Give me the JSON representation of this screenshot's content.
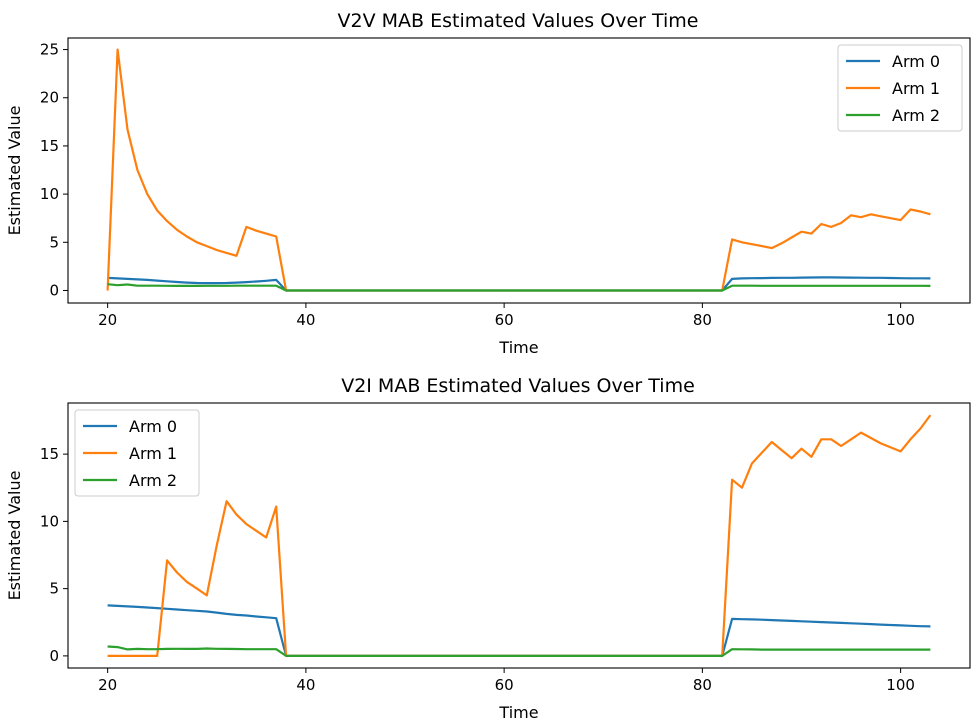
{
  "chart_data": [
    {
      "type": "line",
      "title": "V2V MAB Estimated Values Over Time",
      "xlabel": "Time",
      "ylabel": "Estimated Value",
      "xlim": [
        16,
        107
      ],
      "ylim": [
        -1.3,
        26.2
      ],
      "xticks": [
        20,
        40,
        60,
        80,
        100
      ],
      "yticks": [
        0,
        5,
        10,
        15,
        20,
        25
      ],
      "grid": false,
      "legend_position": "top-right",
      "series": [
        {
          "name": "Arm 0",
          "color": "#1f77b4",
          "x": [
            20,
            21,
            22,
            23,
            24,
            25,
            26,
            27,
            28,
            29,
            30,
            31,
            32,
            33,
            34,
            35,
            36,
            37,
            38,
            82,
            83,
            84,
            85,
            86,
            87,
            88,
            89,
            90,
            91,
            92,
            93,
            94,
            95,
            96,
            97,
            98,
            99,
            100,
            101,
            102,
            103
          ],
          "y": [
            1.3,
            1.25,
            1.2,
            1.15,
            1.1,
            1.02,
            0.95,
            0.88,
            0.82,
            0.78,
            0.76,
            0.76,
            0.78,
            0.82,
            0.87,
            0.93,
            1.0,
            1.1,
            0.0,
            0.0,
            1.2,
            1.25,
            1.27,
            1.28,
            1.3,
            1.31,
            1.32,
            1.34,
            1.35,
            1.36,
            1.36,
            1.35,
            1.34,
            1.33,
            1.32,
            1.31,
            1.29,
            1.27,
            1.26,
            1.26,
            1.25
          ]
        },
        {
          "name": "Arm 1",
          "color": "#ff7f0e",
          "x": [
            20,
            21,
            22,
            23,
            24,
            25,
            26,
            27,
            28,
            29,
            30,
            31,
            32,
            33,
            34,
            35,
            36,
            37,
            38,
            82,
            83,
            84,
            85,
            86,
            87,
            88,
            89,
            90,
            91,
            92,
            93,
            94,
            95,
            96,
            97,
            98,
            99,
            100,
            101,
            102,
            103
          ],
          "y": [
            0.0,
            25.0,
            16.7,
            12.5,
            10.0,
            8.3,
            7.2,
            6.3,
            5.6,
            5.0,
            4.6,
            4.2,
            3.9,
            3.6,
            6.6,
            6.2,
            5.9,
            5.6,
            0.0,
            0.0,
            5.3,
            5.0,
            4.8,
            4.6,
            4.4,
            4.9,
            5.5,
            6.1,
            5.9,
            6.9,
            6.6,
            7.0,
            7.8,
            7.6,
            7.9,
            7.7,
            7.5,
            7.3,
            8.4,
            8.2,
            7.9
          ]
        },
        {
          "name": "Arm 2",
          "color": "#2ca02c",
          "x": [
            20,
            21,
            22,
            23,
            24,
            25,
            26,
            27,
            28,
            29,
            30,
            31,
            32,
            33,
            34,
            35,
            36,
            37,
            38,
            82,
            83,
            84,
            85,
            86,
            87,
            88,
            89,
            90,
            91,
            92,
            93,
            94,
            95,
            96,
            97,
            98,
            99,
            100,
            101,
            102,
            103
          ],
          "y": [
            0.65,
            0.55,
            0.62,
            0.5,
            0.5,
            0.5,
            0.48,
            0.47,
            0.47,
            0.47,
            0.48,
            0.48,
            0.49,
            0.5,
            0.5,
            0.5,
            0.5,
            0.5,
            0.0,
            0.0,
            0.5,
            0.5,
            0.5,
            0.49,
            0.48,
            0.48,
            0.48,
            0.48,
            0.48,
            0.48,
            0.48,
            0.48,
            0.48,
            0.48,
            0.48,
            0.48,
            0.48,
            0.48,
            0.48,
            0.48,
            0.47
          ]
        }
      ]
    },
    {
      "type": "line",
      "title": "V2I MAB Estimated Values Over Time",
      "xlabel": "Time",
      "ylabel": "Estimated Value",
      "xlim": [
        16,
        107
      ],
      "ylim": [
        -0.9,
        18.8
      ],
      "xticks": [
        20,
        40,
        60,
        80,
        100
      ],
      "yticks": [
        0,
        5,
        10,
        15
      ],
      "grid": false,
      "legend_position": "top-left",
      "series": [
        {
          "name": "Arm 0",
          "color": "#1f77b4",
          "x": [
            20,
            21,
            22,
            23,
            24,
            25,
            26,
            27,
            28,
            29,
            30,
            31,
            32,
            33,
            34,
            35,
            36,
            37,
            38,
            82,
            83,
            84,
            85,
            86,
            87,
            88,
            89,
            90,
            91,
            92,
            93,
            94,
            95,
            96,
            97,
            98,
            99,
            100,
            101,
            102,
            103
          ],
          "y": [
            3.75,
            3.72,
            3.68,
            3.64,
            3.6,
            3.55,
            3.5,
            3.45,
            3.4,
            3.35,
            3.3,
            3.22,
            3.12,
            3.05,
            3.0,
            2.93,
            2.87,
            2.8,
            0.0,
            0.0,
            2.75,
            2.73,
            2.71,
            2.69,
            2.66,
            2.63,
            2.6,
            2.57,
            2.54,
            2.51,
            2.48,
            2.45,
            2.42,
            2.39,
            2.36,
            2.33,
            2.3,
            2.27,
            2.24,
            2.21,
            2.19
          ]
        },
        {
          "name": "Arm 1",
          "color": "#ff7f0e",
          "x": [
            20,
            21,
            22,
            23,
            24,
            25,
            26,
            27,
            28,
            29,
            30,
            31,
            32,
            33,
            34,
            35,
            36,
            37,
            38,
            82,
            83,
            84,
            85,
            86,
            87,
            88,
            89,
            90,
            91,
            92,
            93,
            94,
            95,
            96,
            97,
            98,
            99,
            100,
            101,
            102,
            103
          ],
          "y": [
            0.0,
            0.0,
            0.0,
            0.0,
            0.0,
            0.0,
            7.1,
            6.2,
            5.5,
            5.0,
            4.5,
            8.2,
            11.5,
            10.5,
            9.8,
            9.3,
            8.8,
            11.1,
            0.0,
            0.0,
            13.1,
            12.5,
            14.3,
            15.1,
            15.9,
            15.3,
            14.7,
            15.4,
            14.8,
            16.1,
            16.1,
            15.6,
            16.1,
            16.6,
            16.2,
            15.8,
            15.5,
            15.2,
            16.1,
            16.9,
            17.9
          ]
        },
        {
          "name": "Arm 2",
          "color": "#2ca02c",
          "x": [
            20,
            21,
            22,
            23,
            24,
            25,
            26,
            27,
            28,
            29,
            30,
            31,
            32,
            33,
            34,
            35,
            36,
            37,
            38,
            82,
            83,
            84,
            85,
            86,
            87,
            88,
            89,
            90,
            91,
            92,
            93,
            94,
            95,
            96,
            97,
            98,
            99,
            100,
            101,
            102,
            103
          ],
          "y": [
            0.7,
            0.65,
            0.48,
            0.52,
            0.5,
            0.5,
            0.52,
            0.53,
            0.52,
            0.52,
            0.55,
            0.53,
            0.52,
            0.51,
            0.5,
            0.5,
            0.5,
            0.5,
            0.0,
            0.0,
            0.5,
            0.49,
            0.48,
            0.47,
            0.47,
            0.47,
            0.47,
            0.47,
            0.47,
            0.47,
            0.47,
            0.47,
            0.47,
            0.47,
            0.47,
            0.47,
            0.47,
            0.47,
            0.47,
            0.47,
            0.47
          ]
        }
      ]
    }
  ]
}
